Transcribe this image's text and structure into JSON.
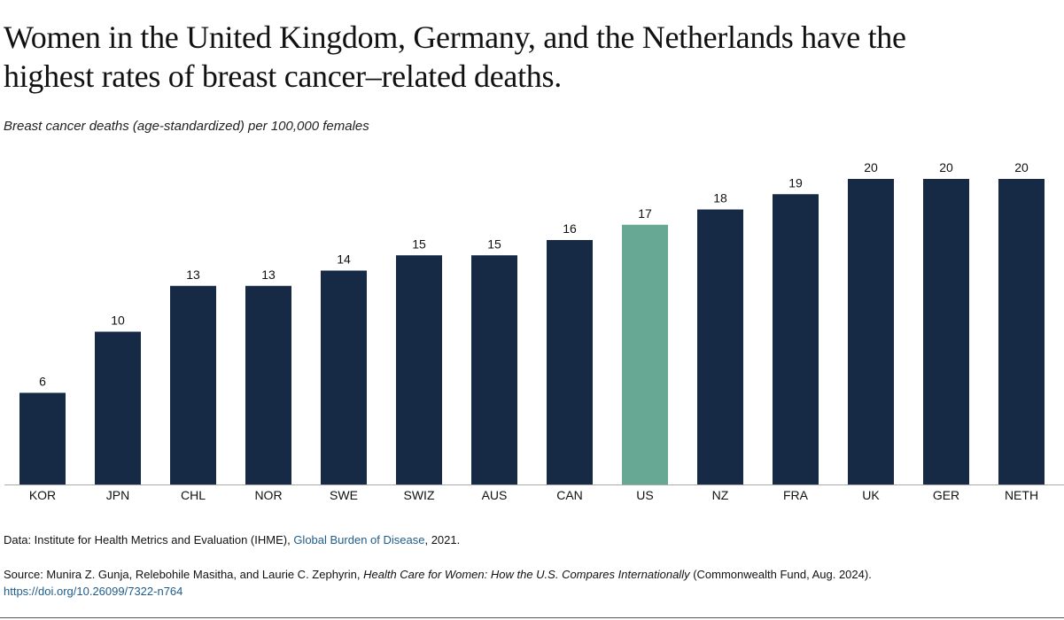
{
  "chart_data": {
    "type": "bar",
    "title": "Women in the United Kingdom, Germany, and the Netherlands have the highest rates of breast cancer–related deaths.",
    "subtitle": "Breast cancer deaths (age-standardized) per 100,000 females",
    "categories": [
      "KOR",
      "JPN",
      "CHL",
      "NOR",
      "SWE",
      "SWIZ",
      "AUS",
      "CAN",
      "US",
      "NZ",
      "FRA",
      "UK",
      "GER",
      "NETH"
    ],
    "values": [
      6,
      10,
      13,
      13,
      14,
      15,
      15,
      16,
      17,
      18,
      19,
      20,
      20,
      20
    ],
    "colors": [
      "#172a45",
      "#172a45",
      "#172a45",
      "#172a45",
      "#172a45",
      "#172a45",
      "#172a45",
      "#172a45",
      "#66a893",
      "#172a45",
      "#172a45",
      "#172a45",
      "#172a45",
      "#172a45"
    ],
    "ylim": [
      0,
      20
    ],
    "grid": false
  },
  "notes": {
    "data": {
      "prefix": "Data: Institute for Health Metrics and Evaluation (IHME), ",
      "link": "Global Burden of Disease",
      "suffix": ", 2021."
    },
    "source": {
      "prefix": "Source: Munira Z. Gunja, Relebohile Masitha, and Laurie C. Zephyrin, ",
      "title": "Health Care for Women: How the U.S. Compares Internationally",
      "suffix": " (Commonwealth Fund, Aug. 2024).",
      "doi": "https://doi.org/10.26099/7322-n764"
    }
  }
}
